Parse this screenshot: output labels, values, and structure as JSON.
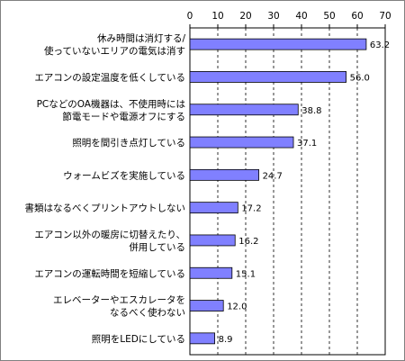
{
  "chart_data": {
    "type": "bar",
    "orientation": "horizontal",
    "xlim": [
      0,
      70
    ],
    "ticks": [
      "0",
      "10",
      "20",
      "30",
      "40",
      "50",
      "60",
      "70"
    ],
    "grid": true,
    "bar_color": "#8080ff",
    "categories": [
      [
        "休み時間は消灯する/",
        "使っていないエリアの電気は消す"
      ],
      [
        "エアコンの設定温度を低くしている"
      ],
      [
        "PCなどのOA機器は、不使用時には",
        "節電モードや電源オフにする"
      ],
      [
        "照明を間引き点灯している"
      ],
      [
        "ウォームビズを実施している"
      ],
      [
        "書類はなるべくプリントアウトしない"
      ],
      [
        "エアコン以外の暖房に切替えたり、",
        "併用している"
      ],
      [
        "エアコンの運転時間を短縮している"
      ],
      [
        "エレベーターやエスカレータを",
        "なるべく使わない"
      ],
      [
        "照明をLEDにしている"
      ]
    ],
    "values": [
      63.2,
      56.0,
      38.8,
      37.1,
      24.7,
      17.2,
      16.2,
      15.1,
      12.0,
      8.9
    ],
    "value_labels": [
      "63.2",
      "56.0",
      "38.8",
      "37.1",
      "24.7",
      "17.2",
      "16.2",
      "15.1",
      "12.0",
      "8.9"
    ]
  }
}
